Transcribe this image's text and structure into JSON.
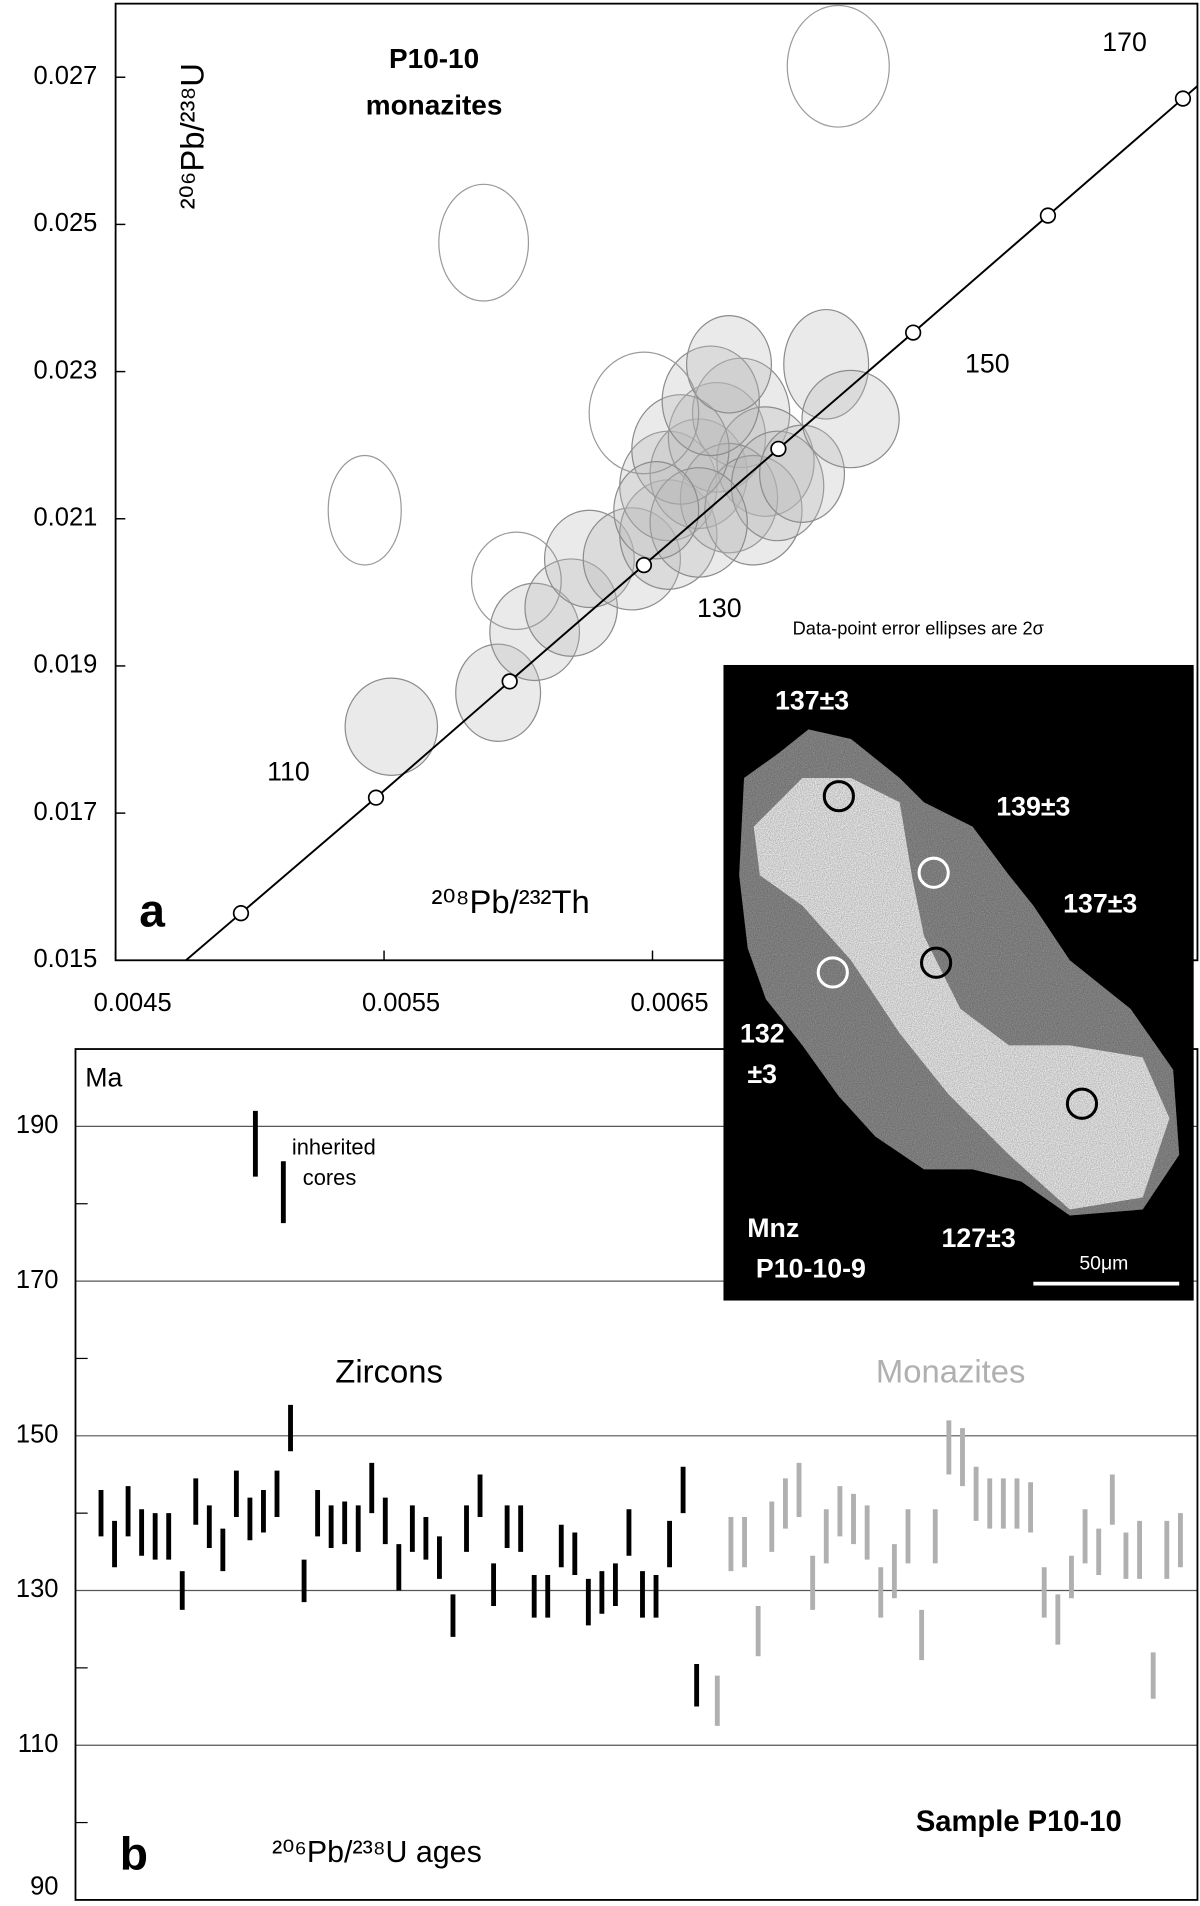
{
  "chart_data": [
    {
      "type": "ellipse",
      "title": "P10-10",
      "subtitle": "monazites",
      "xlabel": "²⁰⁸Pb/²³²Th",
      "ylabel": "²⁰⁶Pb/²³⁸U",
      "panel": "a",
      "annotation": "Data-point error ellipses are 2σ",
      "xlim": [
        0.0045,
        0.00853
      ],
      "ylim": [
        0.015,
        0.028
      ],
      "xticks": [
        0.0045,
        0.0055,
        0.0065
      ],
      "yticks": [
        0.015,
        0.017,
        0.019,
        0.021,
        0.023,
        0.025,
        0.027
      ],
      "series": [
        {
          "color": "#b8b8b8",
          "fill": true,
          "x": [
            0.005527,
            0.005925,
            0.006061,
            0.006197,
            0.006265,
            0.006423,
            0.006559,
            0.006559,
            0.006672,
            0.00674,
            0.00683,
            0.006921,
            0.006785,
            0.006876,
            0.006604,
            0.006717,
            0.006966,
            0.007057,
            0.007147,
            0.007238,
            0.006672,
            0.006514,
            0.006785
          ],
          "y": [
            0.018174,
            0.018636,
            0.019463,
            0.019793,
            0.020455,
            0.020455,
            0.020785,
            0.021446,
            0.021612,
            0.022107,
            0.022438,
            0.021777,
            0.021281,
            0.021116,
            0.021942,
            0.022603,
            0.021446,
            0.021612,
            0.023099,
            0.022355,
            0.02095,
            0.021116,
            0.023099
          ],
          "x_err": [
            0.000172,
            0.000158,
            0.000167,
            0.000172,
            0.000167,
            0.000181,
            0.000181,
            0.000181,
            0.000181,
            0.000181,
            0.000181,
            0.000181,
            0.000181,
            0.000181,
            0.000181,
            0.000181,
            0.000172,
            0.000158,
            0.000158,
            0.000181,
            0.000181,
            0.000158,
            0.000158
          ],
          "y_err": [
            0.000661,
            0.000661,
            0.000661,
            0.000661,
            0.000661,
            0.000694,
            0.000744,
            0.000744,
            0.000744,
            0.000744,
            0.000744,
            0.000744,
            0.000744,
            0.000744,
            0.000744,
            0.000744,
            0.000744,
            0.000661,
            0.000744,
            0.000661,
            0.000744,
            0.000661,
            0.000661
          ]
        },
        {
          "color": "#9a9a9a",
          "fill": false,
          "x": [
            0.005428,
            0.005871,
            0.005993,
            0.006468,
            0.007192
          ],
          "y": [
            0.021116,
            0.024752,
            0.020157,
            0.022438,
            0.027149
          ],
          "x_err": [
            0.000136,
            0.000167,
            0.000167,
            0.000204,
            0.00019
          ],
          "y_err": [
            0.000744,
            0.000793,
            0.000661,
            0.000826,
            0.000826
          ]
        }
      ],
      "concordia": {
        "color": "#000000",
        "x": [
          0.004967,
          0.00547,
          0.005968,
          0.006468,
          0.006969,
          0.007471,
          0.007973,
          0.008476
        ],
        "y": [
          0.01564,
          0.01721,
          0.01879,
          0.02037,
          0.02195,
          0.02353,
          0.02512,
          0.02671
        ],
        "labels": [
          110,
          130,
          150,
          170
        ]
      }
    },
    {
      "type": "range",
      "ylabel": "Ma",
      "panel": "b",
      "xlabel": "²⁰⁶Pb/²³⁸U ages",
      "title": "Sample P10-10",
      "ylim": [
        90,
        200
      ],
      "yticks": [
        90,
        110,
        130,
        150,
        170,
        190
      ],
      "minor_yticks": [
        100,
        120,
        140,
        160,
        180
      ],
      "grid": true,
      "annotation": [
        "inherited",
        "cores"
      ],
      "inherited": {
        "color": "#000000",
        "highs": [
          192,
          185.5
        ],
        "lows": [
          183.5,
          177.5
        ]
      },
      "series": [
        {
          "name": "Zircons",
          "color": "#000000",
          "highs": [
            143,
            139,
            143.5,
            140.5,
            140,
            140,
            132.5,
            144.5,
            141,
            138,
            145.5,
            142,
            143,
            145.5,
            154,
            134,
            143,
            141,
            141.5,
            141,
            146.5,
            142,
            136,
            141,
            139.5,
            137,
            129.5,
            141,
            145,
            133.5,
            141,
            141,
            132,
            132,
            138.5,
            137.5,
            131.5,
            132.5,
            133.5,
            140.5,
            132.5,
            132,
            139,
            146,
            120.5
          ],
          "lows": [
            137,
            133,
            137,
            134.5,
            134,
            134,
            127.5,
            138.5,
            135.5,
            132.5,
            139.5,
            136.5,
            137.5,
            139.5,
            148,
            128.5,
            137,
            135.5,
            136,
            135,
            140,
            136,
            130,
            135,
            134,
            131.5,
            124,
            135,
            139.5,
            128,
            135.5,
            135,
            126.5,
            126.5,
            133,
            132,
            125.5,
            127,
            128,
            134.5,
            126.5,
            126.5,
            133,
            140,
            115
          ]
        },
        {
          "name": "Monazites",
          "color": "#b0b0b0",
          "highs": [
            119,
            139.5,
            139.5,
            128,
            141.5,
            144.5,
            146.5,
            134.5,
            140.5,
            143.5,
            142.5,
            141,
            133,
            136,
            140.5,
            127.5,
            140.5,
            152,
            151,
            146,
            144.5,
            144.5,
            144.5,
            144,
            133,
            129.5,
            134.5,
            140.5,
            138,
            145,
            137.5,
            139,
            122,
            139,
            140
          ],
          "lows": [
            112.5,
            132.5,
            133,
            121.5,
            135,
            138,
            139.5,
            127.5,
            133.5,
            137,
            136,
            134,
            126.5,
            129,
            133.5,
            121,
            133.5,
            145,
            143.5,
            139,
            138,
            138,
            138,
            137.5,
            126.5,
            123,
            129,
            133.5,
            132,
            138.5,
            131.5,
            131.5,
            116,
            131.5,
            133
          ]
        }
      ]
    }
  ],
  "inset": {
    "labels": [
      "137±3",
      "139±3",
      "137±3",
      "132",
      "±3",
      "127±3",
      "Mnz",
      "P10-10-9"
    ],
    "scale": "50μm"
  }
}
